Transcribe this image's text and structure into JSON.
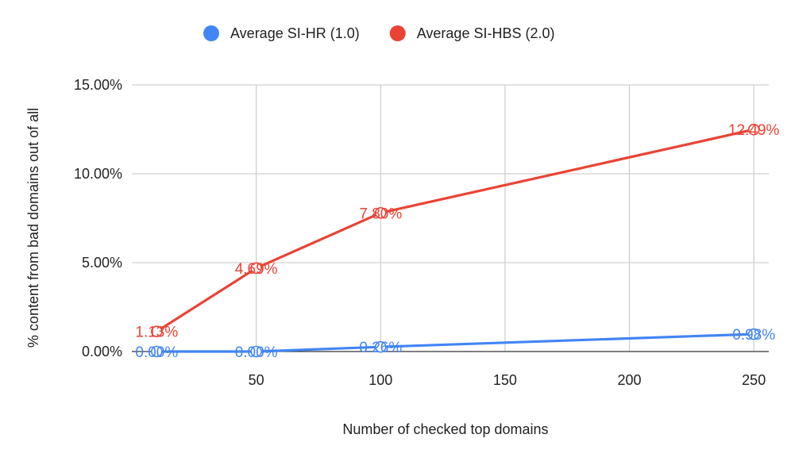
{
  "chart_data": {
    "type": "line",
    "title": "",
    "xlabel": "Number of checked top domains",
    "ylabel": "% content from bad domains out of all",
    "x": [
      10,
      50,
      100,
      250
    ],
    "xlim": [
      0,
      256
    ],
    "ylim": [
      0,
      15
    ],
    "x_ticks": [
      50,
      100,
      150,
      200,
      250
    ],
    "x_tick_labels": [
      "50",
      "100",
      "150",
      "200",
      "250"
    ],
    "y_ticks": [
      0,
      5,
      10,
      15
    ],
    "y_tick_labels": [
      "0.00%",
      "5.00%",
      "10.00%",
      "15.00%"
    ],
    "grid": true,
    "legend_position": "top-center",
    "series": [
      {
        "name": "Average SI-HR (1.0)",
        "color": "#4285F4",
        "values": [
          0.0,
          0.0,
          0.26,
          0.98
        ],
        "labels": [
          "0.00%",
          "0.00%",
          "0.26%",
          "0.98%"
        ]
      },
      {
        "name": "Average SI-HBS (2.0)",
        "color": "#EA4335",
        "values": [
          1.13,
          4.69,
          7.8,
          12.49
        ],
        "labels": [
          "1.13%",
          "4.69%",
          "7.80%",
          "12.49%"
        ]
      }
    ]
  }
}
